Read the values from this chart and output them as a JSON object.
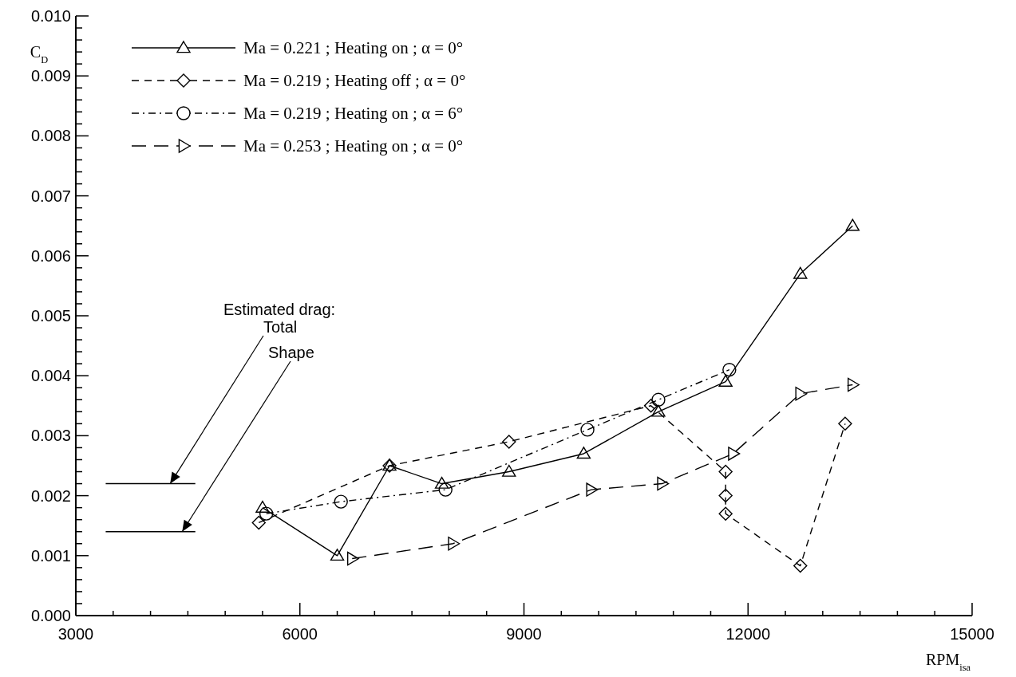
{
  "chart_data": {
    "type": "line",
    "xlabel": "RPM$_{isa}$",
    "ylabel": "C$_{D}$",
    "xlim": [
      3000,
      15000
    ],
    "xticks": [
      3000,
      {
        "value": 3500,
        "label": null
      },
      {
        "value": 4000,
        "label": null
      },
      {
        "value": 4500,
        "label": null
      },
      {
        "value": 5000,
        "label": null
      },
      {
        "value": 5500,
        "label": null
      },
      6000,
      {
        "value": 6500,
        "label": null
      },
      {
        "value": 7000,
        "label": null
      },
      {
        "value": 7500,
        "label": null
      },
      {
        "value": 8000,
        "label": null
      },
      {
        "value": 8500,
        "label": null
      },
      9000,
      {
        "value": 9500,
        "label": null
      },
      {
        "value": 10000,
        "label": null
      },
      {
        "value": 10500,
        "label": null
      },
      {
        "value": 11000,
        "label": null
      },
      {
        "value": 11500,
        "label": null
      },
      12000,
      {
        "value": 12500,
        "label": null
      },
      {
        "value": 13000,
        "label": null
      },
      {
        "value": 13500,
        "label": null
      },
      {
        "value": 14000,
        "label": null
      },
      {
        "value": 14500,
        "label": null
      },
      15000
    ],
    "ylim": [
      0,
      0.01
    ],
    "yticks": [
      {
        "value": 0,
        "label": "0.000"
      },
      {
        "value": 0.0002,
        "label": null
      },
      {
        "value": 0.0004,
        "label": null
      },
      {
        "value": 0.0006,
        "label": null
      },
      {
        "value": 0.0008,
        "label": null
      },
      {
        "value": 0.001,
        "label": "0.001"
      },
      {
        "value": 0.0012,
        "label": null
      },
      {
        "value": 0.0014,
        "label": null
      },
      {
        "value": 0.0016,
        "label": null
      },
      {
        "value": 0.0018,
        "label": null
      },
      {
        "value": 0.002,
        "label": "0.002"
      },
      {
        "value": 0.0022,
        "label": null
      },
      {
        "value": 0.0024,
        "label": null
      },
      {
        "value": 0.0026,
        "label": null
      },
      {
        "value": 0.0028,
        "label": null
      },
      {
        "value": 0.003,
        "label": "0.003"
      },
      {
        "value": 0.0032,
        "label": null
      },
      {
        "value": 0.0034,
        "label": null
      },
      {
        "value": 0.0036,
        "label": null
      },
      {
        "value": 0.0038,
        "label": null
      },
      {
        "value": 0.004,
        "label": "0.004"
      },
      {
        "value": 0.0042,
        "label": null
      },
      {
        "value": 0.0044,
        "label": null
      },
      {
        "value": 0.0046,
        "label": null
      },
      {
        "value": 0.0048,
        "label": null
      },
      {
        "value": 0.005,
        "label": "0.005"
      },
      {
        "value": 0.0052,
        "label": null
      },
      {
        "value": 0.0054,
        "label": null
      },
      {
        "value": 0.0056,
        "label": null
      },
      {
        "value": 0.0058,
        "label": null
      },
      {
        "value": 0.006,
        "label": "0.006"
      },
      {
        "value": 0.0062,
        "label": null
      },
      {
        "value": 0.0064,
        "label": null
      },
      {
        "value": 0.0066,
        "label": null
      },
      {
        "value": 0.0068,
        "label": null
      },
      {
        "value": 0.007,
        "label": "0.007"
      },
      {
        "value": 0.0072,
        "label": null
      },
      {
        "value": 0.0074,
        "label": null
      },
      {
        "value": 0.0076,
        "label": null
      },
      {
        "value": 0.0078,
        "label": null
      },
      {
        "value": 0.008,
        "label": "0.008"
      },
      {
        "value": 0.0082,
        "label": null
      },
      {
        "value": 0.0084,
        "label": null
      },
      {
        "value": 0.0086,
        "label": null
      },
      {
        "value": 0.0088,
        "label": null
      },
      {
        "value": 0.009,
        "label": "0.009"
      },
      {
        "value": 0.0092,
        "label": null
      },
      {
        "value": 0.0094,
        "label": null
      },
      {
        "value": 0.0096,
        "label": null
      },
      {
        "value": 0.0098,
        "label": null
      },
      {
        "value": 0.01,
        "label": "0.010"
      }
    ],
    "grid": false,
    "legend": "top left",
    "series": [
      {
        "name": "Ma = 0.221 ; Heating on ; α = 0°",
        "color": "#000000",
        "marker": "triangle",
        "line_style": "solid",
        "x": [
          5500,
          6500,
          7200,
          7900,
          8800,
          9800,
          10800,
          11700,
          12700,
          13400
        ],
        "values": [
          0.0018,
          0.001,
          0.0025,
          0.0022,
          0.0024,
          0.0027,
          0.0034,
          0.0039,
          0.0057,
          0.0065
        ]
      },
      {
        "name": "Ma = 0.219 ; Heating off ; α = 0°",
        "color": "#000000",
        "marker": "diamond",
        "line_style": "dashed",
        "x": [
          5450,
          7200,
          8800,
          10700,
          11700,
          11700,
          11700,
          12700,
          13300
        ],
        "values": [
          0.00155,
          0.0025,
          0.0029,
          0.0035,
          0.0024,
          0.002,
          0.0017,
          0.00083,
          0.0032
        ]
      },
      {
        "name": "Ma = 0.219 ; Heating on ; α = 6°",
        "color": "#000000",
        "marker": "circle",
        "line_style": "dashdot",
        "x": [
          5550,
          6550,
          7950,
          9850,
          10800,
          11750
        ],
        "values": [
          0.0017,
          0.0019,
          0.0021,
          0.0031,
          0.0036,
          0.0041
        ]
      },
      {
        "name": "Ma = 0.253 ; Heating on ; α = 0°",
        "color": "#000000",
        "marker": "triangle-right",
        "line_style": "longdash",
        "x": [
          6700,
          8050,
          9900,
          10850,
          11800,
          12700,
          13400
        ],
        "values": [
          0.00095,
          0.0012,
          0.0021,
          0.0022,
          0.0027,
          0.0037,
          0.00385
        ]
      },
      {
        "color": "#000000",
        "marker": "none",
        "line_style": "solid",
        "x": [
          3400,
          4600
        ],
        "values": [
          0.0022,
          0.0022
        ]
      },
      {
        "color": "#000000",
        "marker": "none",
        "line_style": "solid",
        "x": [
          3400,
          4600
        ],
        "values": [
          0.0014,
          0.0014
        ]
      }
    ],
    "annotations": [
      "Estimated drag:",
      {
        "text": "Total",
        "x": 4263,
        "y": 0.0022
      },
      {
        "text": "Shape",
        "x": 4424,
        "y": 0.0014
      }
    ]
  }
}
